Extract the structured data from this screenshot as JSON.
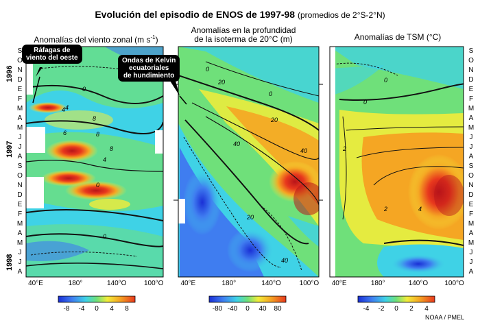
{
  "title": "Evolución del episodio de ENOS de  1997-98",
  "subtitle": "(promedios de 2°S-2°N)",
  "credit": "NOAA / PMEL",
  "callouts": {
    "wind_bursts": [
      "Ráfagas de",
      "viento del oeste"
    ],
    "kelvin_waves": [
      "Ondas de Kelvin",
      "ecuatoriales",
      "de hundimiento"
    ]
  },
  "axes": {
    "months": [
      "S",
      "O",
      "N",
      "D",
      "E",
      "F",
      "M",
      "A",
      "M",
      "J",
      "J",
      "A",
      "S",
      "O",
      "N",
      "D",
      "E",
      "F",
      "M",
      "A",
      "M",
      "J",
      "J",
      "A"
    ],
    "years": [
      "1996",
      "1997",
      "1998"
    ],
    "x_ticks": [
      "40°E",
      "180°",
      "140°O",
      "100°O"
    ]
  },
  "panels": [
    {
      "id": "wind",
      "title": "Anomalías del viento zonal (m s",
      "title_sup": "-1",
      "title_end": ")",
      "colorbar_ticks": [
        "-8",
        "-4",
        "0",
        "4",
        "8"
      ],
      "contour_labels": [
        "0",
        "4",
        "8",
        "4",
        "6",
        "8",
        "8",
        "4",
        "0",
        "0",
        "0"
      ]
    },
    {
      "id": "depth",
      "title_line1": "Anomalías en la profundidad",
      "title_line2": "de la isoterma de 20°C (m)",
      "colorbar_ticks": [
        "-80",
        "-40",
        "0",
        "40",
        "80"
      ],
      "contour_labels": [
        "20",
        "0",
        "40",
        "20",
        "40",
        "20",
        "40",
        "0"
      ]
    },
    {
      "id": "sst",
      "title": "Anomalías de TSM (°C)",
      "colorbar_ticks": [
        "-4",
        "-2",
        "0",
        "2",
        "4"
      ],
      "contour_labels": [
        "2",
        "2",
        "4",
        "0",
        "0"
      ]
    }
  ],
  "colors": {
    "deep_blue": "#1a2fd6",
    "blue": "#3f7df0",
    "cyan": "#3fd2e6",
    "green": "#6fe07a",
    "yellow": "#f2ec3a",
    "orange": "#f5a623",
    "red": "#e8381d",
    "dark_red": "#b8141a"
  },
  "chart_data": [
    {
      "type": "heatmap",
      "title": "Anomalías del viento zonal (m s-1)",
      "x": [
        "40°E",
        "180°",
        "140°O",
        "100°O"
      ],
      "y": [
        "1996-S",
        "1996-O",
        "1996-N",
        "1996-D",
        "1997-E",
        "1997-F",
        "1997-M",
        "1997-A",
        "1997-M",
        "1997-J",
        "1997-J",
        "1997-A",
        "1997-S",
        "1997-O",
        "1997-N",
        "1997-D",
        "1998-E",
        "1998-F",
        "1998-M",
        "1998-A",
        "1998-M",
        "1998-J",
        "1998-J",
        "1998-A"
      ],
      "colorbar": {
        "min": -10,
        "max": 10,
        "ticks": [
          -8,
          -4,
          0,
          4,
          8
        ]
      },
      "highlights": [
        {
          "time": "1997-M",
          "lon": "180°",
          "value": 8
        },
        {
          "time": "1997-S",
          "lon": "180°",
          "value": 8
        },
        {
          "time": "1997-N",
          "lon": "180°",
          "value": 8
        },
        {
          "time": "1998-E",
          "lon": "160°O",
          "value": 6
        }
      ]
    },
    {
      "type": "heatmap",
      "title": "Anomalías en la profundidad de la isoterma de 20°C (m)",
      "x": [
        "40°E",
        "180°",
        "140°O",
        "100°O"
      ],
      "colorbar": {
        "min": -100,
        "max": 100,
        "ticks": [
          -80,
          -40,
          0,
          40,
          80
        ]
      },
      "highlights": [
        {
          "time": "1997-N",
          "lon": "100°O",
          "value": 80
        },
        {
          "time": "1998-M",
          "lon": "160°O",
          "value": -80
        }
      ]
    },
    {
      "type": "heatmap",
      "title": "Anomalías de TSM (°C)",
      "x": [
        "40°E",
        "180°",
        "140°O",
        "100°O"
      ],
      "colorbar": {
        "min": -5,
        "max": 5,
        "ticks": [
          -4,
          -2,
          0,
          2,
          4
        ]
      },
      "highlights": [
        {
          "time": "1997-N",
          "lon": "100°O",
          "value": 5
        },
        {
          "time": "1998-J",
          "lon": "140°O",
          "value": -3
        }
      ]
    }
  ]
}
